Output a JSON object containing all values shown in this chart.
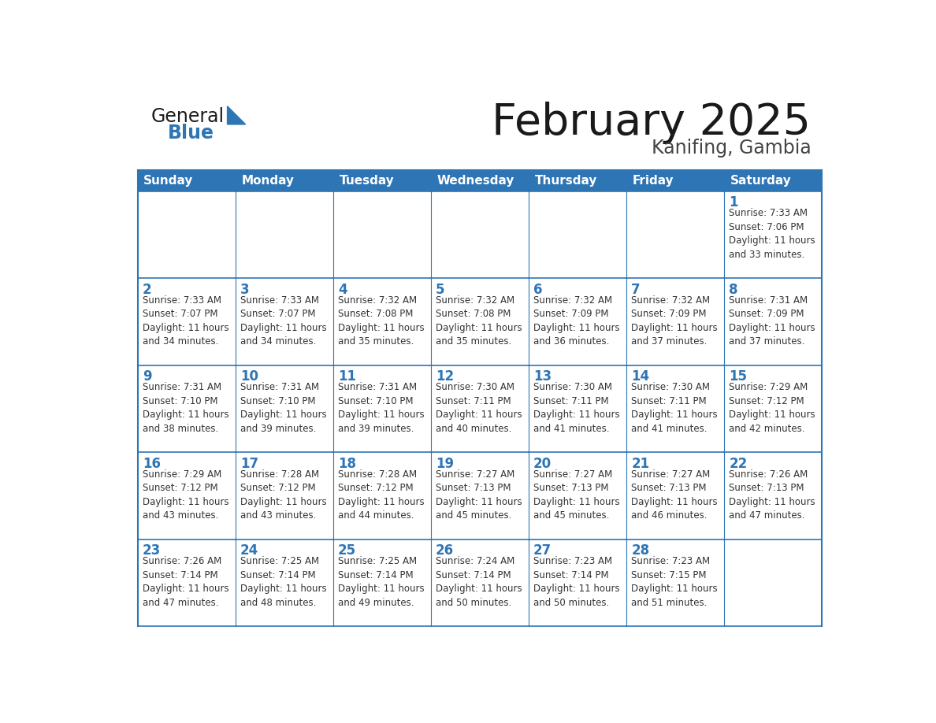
{
  "title": "February 2025",
  "subtitle": "Kanifing, Gambia",
  "header_color": "#2E75B6",
  "header_text_color": "#FFFFFF",
  "cell_bg_color": "#FFFFFF",
  "border_color": "#2E75B6",
  "title_color": "#1A1A1A",
  "subtitle_color": "#444444",
  "day_number_color": "#2E75B6",
  "cell_text_color": "#333333",
  "days_of_week": [
    "Sunday",
    "Monday",
    "Tuesday",
    "Wednesday",
    "Thursday",
    "Friday",
    "Saturday"
  ],
  "weeks": [
    [
      {
        "day": "",
        "info": ""
      },
      {
        "day": "",
        "info": ""
      },
      {
        "day": "",
        "info": ""
      },
      {
        "day": "",
        "info": ""
      },
      {
        "day": "",
        "info": ""
      },
      {
        "day": "",
        "info": ""
      },
      {
        "day": "1",
        "info": "Sunrise: 7:33 AM\nSunset: 7:06 PM\nDaylight: 11 hours\nand 33 minutes."
      }
    ],
    [
      {
        "day": "2",
        "info": "Sunrise: 7:33 AM\nSunset: 7:07 PM\nDaylight: 11 hours\nand 34 minutes."
      },
      {
        "day": "3",
        "info": "Sunrise: 7:33 AM\nSunset: 7:07 PM\nDaylight: 11 hours\nand 34 minutes."
      },
      {
        "day": "4",
        "info": "Sunrise: 7:32 AM\nSunset: 7:08 PM\nDaylight: 11 hours\nand 35 minutes."
      },
      {
        "day": "5",
        "info": "Sunrise: 7:32 AM\nSunset: 7:08 PM\nDaylight: 11 hours\nand 35 minutes."
      },
      {
        "day": "6",
        "info": "Sunrise: 7:32 AM\nSunset: 7:09 PM\nDaylight: 11 hours\nand 36 minutes."
      },
      {
        "day": "7",
        "info": "Sunrise: 7:32 AM\nSunset: 7:09 PM\nDaylight: 11 hours\nand 37 minutes."
      },
      {
        "day": "8",
        "info": "Sunrise: 7:31 AM\nSunset: 7:09 PM\nDaylight: 11 hours\nand 37 minutes."
      }
    ],
    [
      {
        "day": "9",
        "info": "Sunrise: 7:31 AM\nSunset: 7:10 PM\nDaylight: 11 hours\nand 38 minutes."
      },
      {
        "day": "10",
        "info": "Sunrise: 7:31 AM\nSunset: 7:10 PM\nDaylight: 11 hours\nand 39 minutes."
      },
      {
        "day": "11",
        "info": "Sunrise: 7:31 AM\nSunset: 7:10 PM\nDaylight: 11 hours\nand 39 minutes."
      },
      {
        "day": "12",
        "info": "Sunrise: 7:30 AM\nSunset: 7:11 PM\nDaylight: 11 hours\nand 40 minutes."
      },
      {
        "day": "13",
        "info": "Sunrise: 7:30 AM\nSunset: 7:11 PM\nDaylight: 11 hours\nand 41 minutes."
      },
      {
        "day": "14",
        "info": "Sunrise: 7:30 AM\nSunset: 7:11 PM\nDaylight: 11 hours\nand 41 minutes."
      },
      {
        "day": "15",
        "info": "Sunrise: 7:29 AM\nSunset: 7:12 PM\nDaylight: 11 hours\nand 42 minutes."
      }
    ],
    [
      {
        "day": "16",
        "info": "Sunrise: 7:29 AM\nSunset: 7:12 PM\nDaylight: 11 hours\nand 43 minutes."
      },
      {
        "day": "17",
        "info": "Sunrise: 7:28 AM\nSunset: 7:12 PM\nDaylight: 11 hours\nand 43 minutes."
      },
      {
        "day": "18",
        "info": "Sunrise: 7:28 AM\nSunset: 7:12 PM\nDaylight: 11 hours\nand 44 minutes."
      },
      {
        "day": "19",
        "info": "Sunrise: 7:27 AM\nSunset: 7:13 PM\nDaylight: 11 hours\nand 45 minutes."
      },
      {
        "day": "20",
        "info": "Sunrise: 7:27 AM\nSunset: 7:13 PM\nDaylight: 11 hours\nand 45 minutes."
      },
      {
        "day": "21",
        "info": "Sunrise: 7:27 AM\nSunset: 7:13 PM\nDaylight: 11 hours\nand 46 minutes."
      },
      {
        "day": "22",
        "info": "Sunrise: 7:26 AM\nSunset: 7:13 PM\nDaylight: 11 hours\nand 47 minutes."
      }
    ],
    [
      {
        "day": "23",
        "info": "Sunrise: 7:26 AM\nSunset: 7:14 PM\nDaylight: 11 hours\nand 47 minutes."
      },
      {
        "day": "24",
        "info": "Sunrise: 7:25 AM\nSunset: 7:14 PM\nDaylight: 11 hours\nand 48 minutes."
      },
      {
        "day": "25",
        "info": "Sunrise: 7:25 AM\nSunset: 7:14 PM\nDaylight: 11 hours\nand 49 minutes."
      },
      {
        "day": "26",
        "info": "Sunrise: 7:24 AM\nSunset: 7:14 PM\nDaylight: 11 hours\nand 50 minutes."
      },
      {
        "day": "27",
        "info": "Sunrise: 7:23 AM\nSunset: 7:14 PM\nDaylight: 11 hours\nand 50 minutes."
      },
      {
        "day": "28",
        "info": "Sunrise: 7:23 AM\nSunset: 7:15 PM\nDaylight: 11 hours\nand 51 minutes."
      },
      {
        "day": "",
        "info": ""
      }
    ]
  ],
  "logo_text_general": "General",
  "logo_text_blue": "Blue",
  "logo_general_color": "#1A1A1A",
  "logo_blue_color": "#2E75B6",
  "logo_triangle_color": "#2E75B6"
}
